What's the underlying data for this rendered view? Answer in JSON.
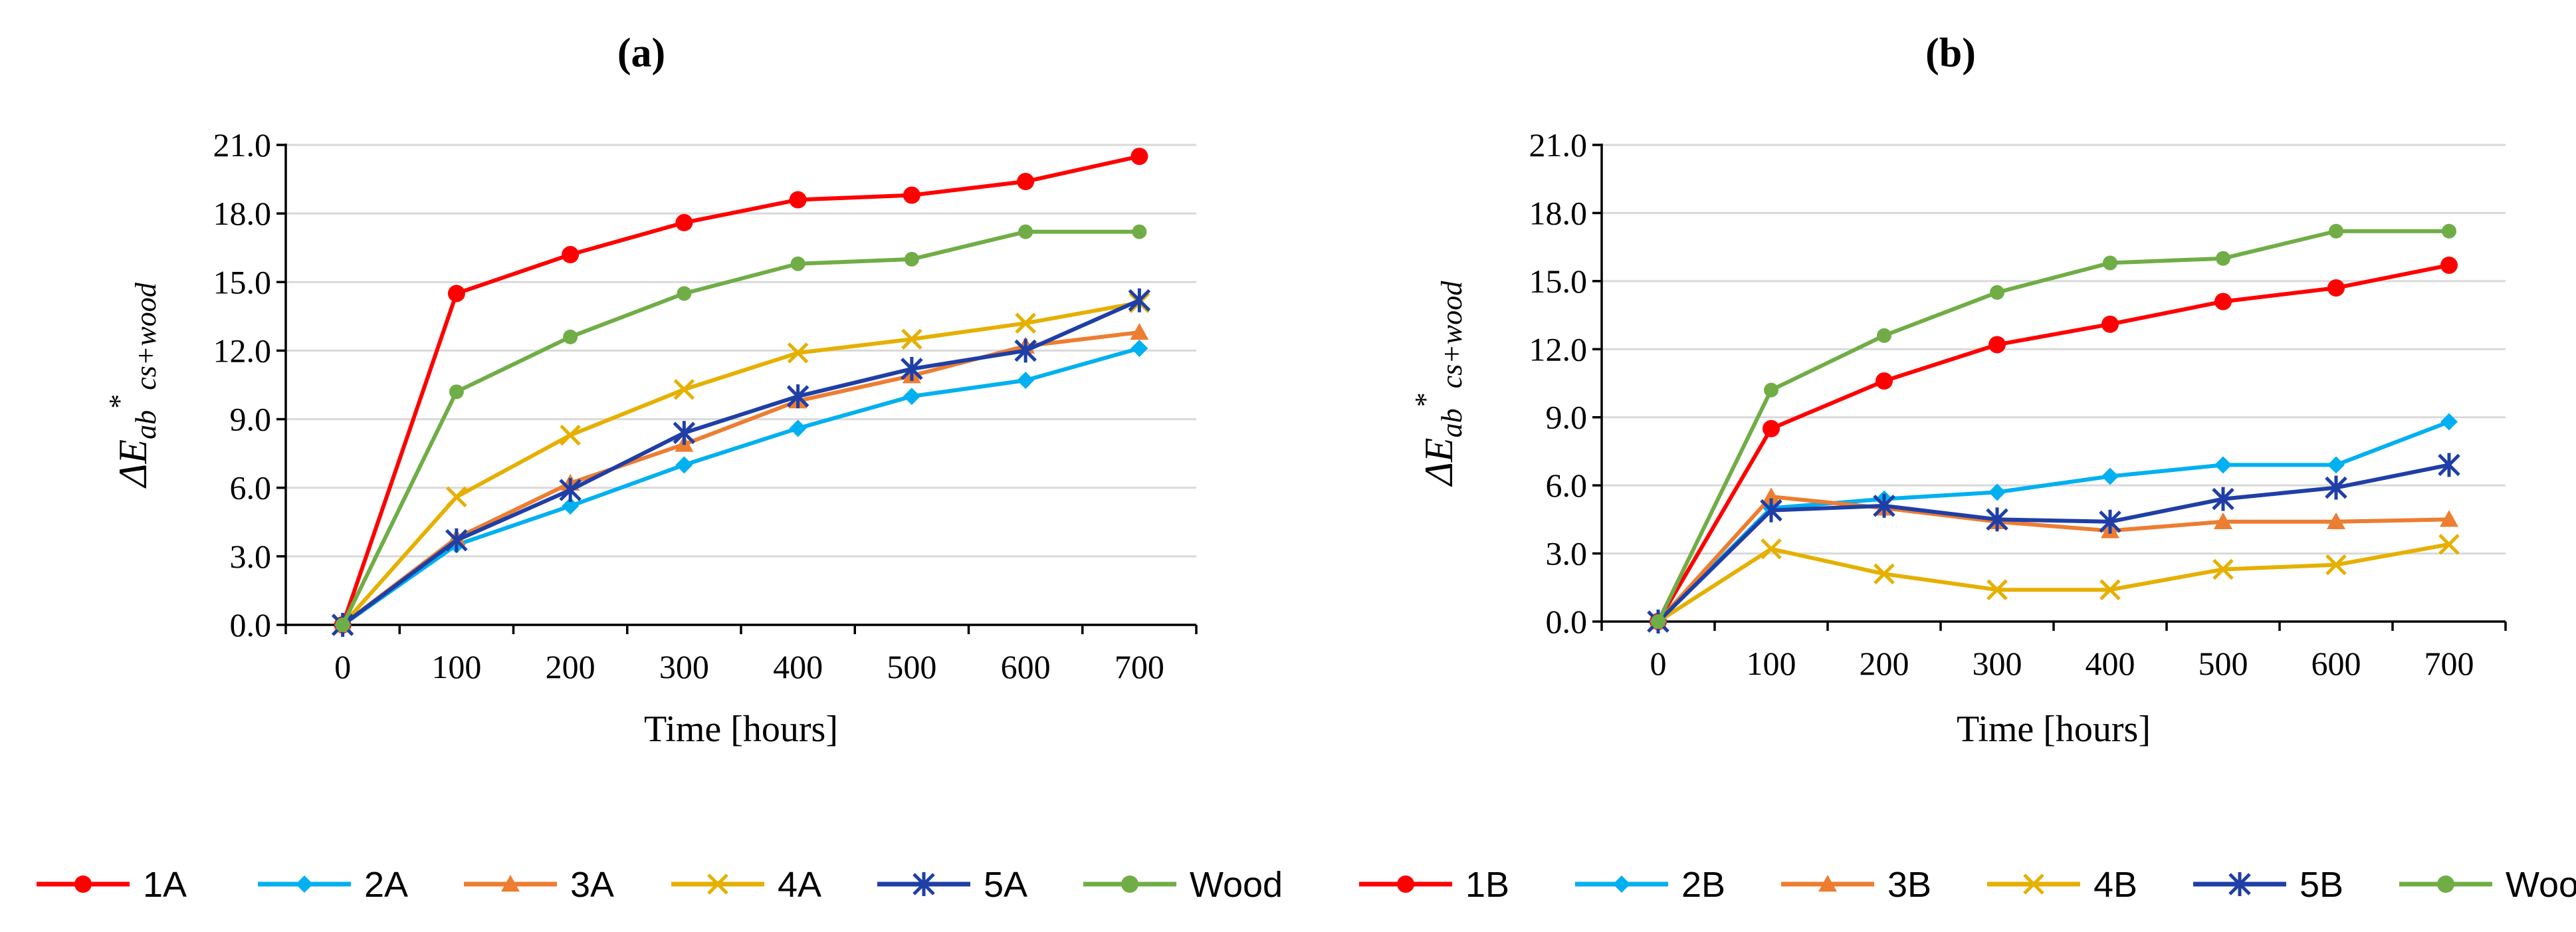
{
  "chart_data": [
    {
      "type": "line",
      "title": "(a)",
      "xlabel": "Time [hours]",
      "ylabel_main": "ΔE",
      "ylabel_sub": "ab",
      "ylabel_sup": "*",
      "ylabel_tail": "cs+wood",
      "x": [
        0,
        100,
        200,
        300,
        400,
        500,
        600,
        700
      ],
      "x_tick_labels": [
        "0",
        "100",
        "200",
        "300",
        "400",
        "500",
        "600",
        "700"
      ],
      "ylim": [
        0,
        21
      ],
      "y_ticks": [
        0,
        3,
        6,
        9,
        12,
        15,
        18,
        21
      ],
      "y_tick_labels": [
        "0.0",
        "3.0",
        "6.0",
        "9.0",
        "12.0",
        "15.0",
        "18.0",
        "21.0"
      ],
      "grid": true,
      "legend_position": "bottom",
      "series": [
        {
          "name": "1A",
          "color": "#ff0000",
          "marker": "circle",
          "values": [
            0,
            14.5,
            16.2,
            17.6,
            18.6,
            18.8,
            19.4,
            20.5
          ]
        },
        {
          "name": "2A",
          "color": "#00b0f0",
          "marker": "diamond",
          "values": [
            0,
            3.5,
            5.2,
            7.0,
            8.6,
            10.0,
            10.7,
            12.1
          ]
        },
        {
          "name": "3A",
          "color": "#ed7d31",
          "marker": "triangle",
          "values": [
            0,
            3.8,
            6.2,
            7.9,
            9.8,
            10.9,
            12.2,
            12.8
          ]
        },
        {
          "name": "4A",
          "color": "#e5b000",
          "marker": "x",
          "values": [
            0,
            5.6,
            8.3,
            10.3,
            11.9,
            12.5,
            13.2,
            14.1
          ]
        },
        {
          "name": "5A",
          "color": "#1f3fa6",
          "marker": "star",
          "values": [
            0,
            3.7,
            5.9,
            8.4,
            10.0,
            11.2,
            12.0,
            14.2
          ]
        },
        {
          "name": "Wood",
          "color": "#70ad47",
          "marker": "circle-small",
          "values": [
            0,
            10.2,
            12.6,
            14.5,
            15.8,
            16.0,
            17.2,
            17.2
          ]
        }
      ]
    },
    {
      "type": "line",
      "title": "(b)",
      "xlabel": "Time [hours]",
      "ylabel_main": "ΔE",
      "ylabel_sub": "ab",
      "ylabel_sup": "*",
      "ylabel_tail": "cs+wood",
      "x": [
        0,
        100,
        200,
        300,
        400,
        500,
        600,
        700
      ],
      "x_tick_labels": [
        "0",
        "100",
        "200",
        "300",
        "400",
        "500",
        "600",
        "700"
      ],
      "ylim": [
        0,
        21
      ],
      "y_ticks": [
        0,
        3,
        6,
        9,
        12,
        15,
        18,
        21
      ],
      "y_tick_labels": [
        "0.0",
        "3.0",
        "6.0",
        "9.0",
        "12.0",
        "15.0",
        "18.0",
        "21.0"
      ],
      "grid": true,
      "legend_position": "bottom",
      "series": [
        {
          "name": "1B",
          "color": "#ff0000",
          "marker": "circle",
          "values": [
            0,
            8.5,
            10.6,
            12.2,
            13.1,
            14.1,
            14.7,
            15.7
          ]
        },
        {
          "name": "2B",
          "color": "#00b0f0",
          "marker": "diamond",
          "values": [
            0,
            5.0,
            5.4,
            5.7,
            6.4,
            6.9,
            6.9,
            8.8
          ]
        },
        {
          "name": "3B",
          "color": "#ed7d31",
          "marker": "triangle",
          "values": [
            0,
            5.5,
            5.0,
            4.4,
            4.0,
            4.4,
            4.4,
            4.5
          ]
        },
        {
          "name": "4B",
          "color": "#e5b000",
          "marker": "x",
          "values": [
            0,
            3.2,
            2.1,
            1.4,
            1.4,
            2.3,
            2.5,
            3.4
          ]
        },
        {
          "name": "5B",
          "color": "#1f3fa6",
          "marker": "star",
          "values": [
            0,
            4.9,
            5.1,
            4.5,
            4.4,
            5.4,
            5.9,
            6.9
          ]
        },
        {
          "name": "Wood",
          "color": "#70ad47",
          "marker": "circle-small",
          "values": [
            0,
            10.2,
            12.6,
            14.5,
            15.8,
            16.0,
            17.2,
            17.2
          ]
        }
      ]
    }
  ]
}
